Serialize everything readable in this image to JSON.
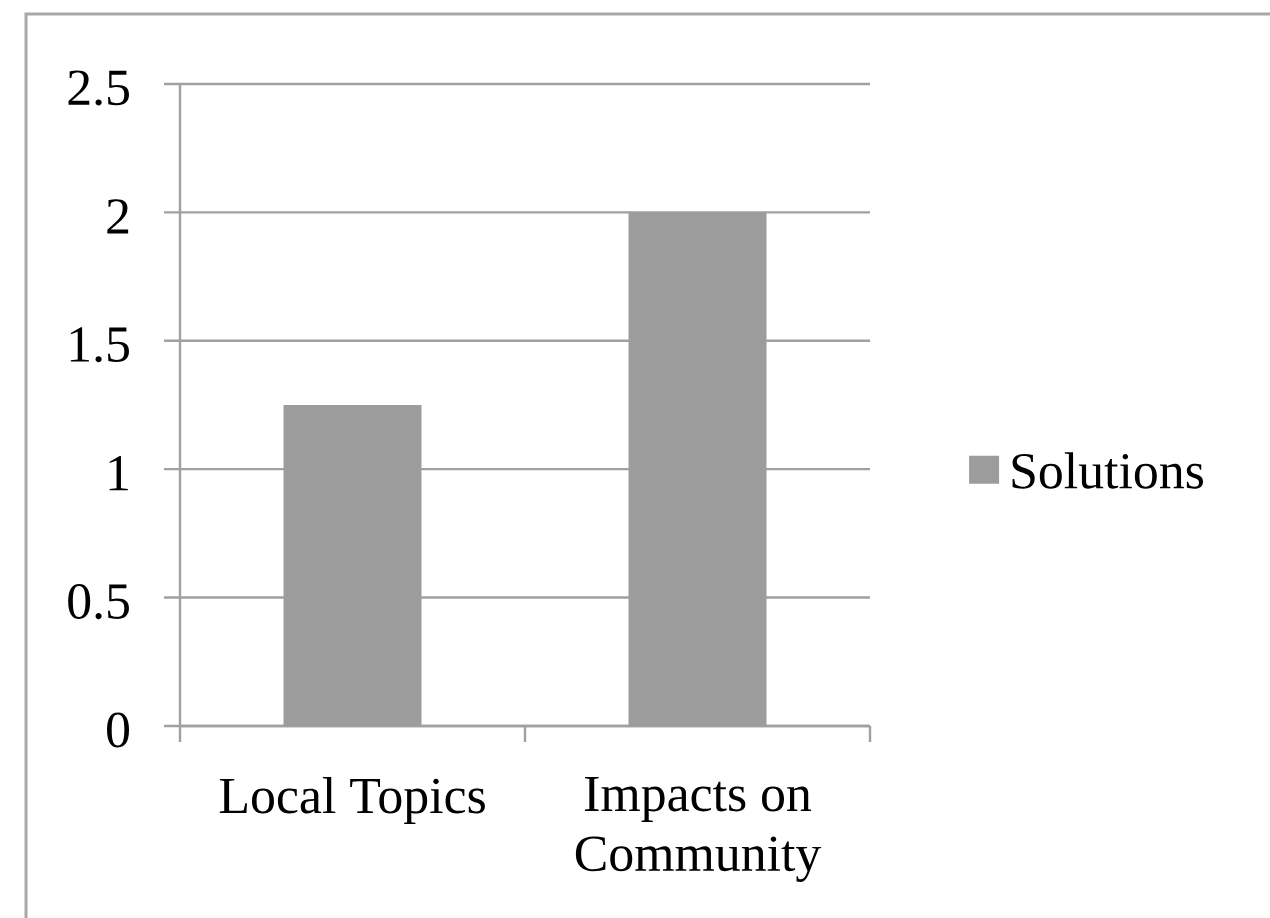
{
  "chart_data": {
    "type": "bar",
    "categories": [
      "Local Topics",
      "Impacts on Community"
    ],
    "series": [
      {
        "name": "Solutions",
        "color": "#9c9c9c",
        "values": [
          1.25,
          2
        ]
      }
    ],
    "ylim": [
      0,
      2.5
    ],
    "yticks": [
      0,
      0.5,
      1,
      1.5,
      2,
      2.5
    ],
    "grid": "y",
    "legend": "right"
  }
}
